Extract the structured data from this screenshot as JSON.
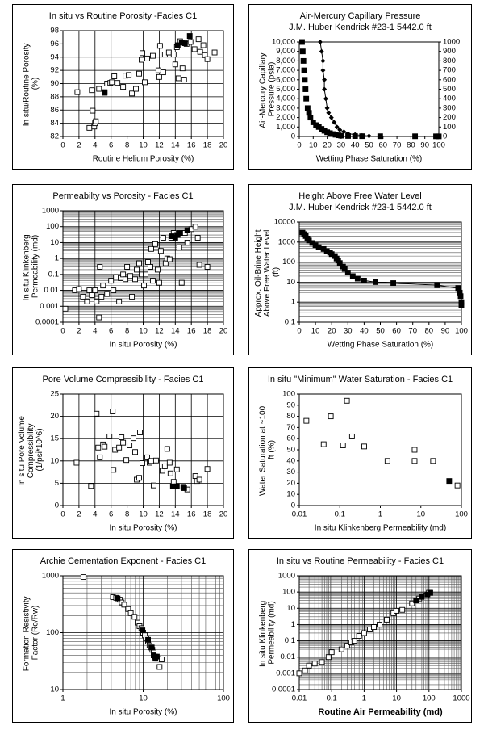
{
  "chart_data": [
    {
      "type": "scatter",
      "title": "In situ vs Routine Porosity -Facies C1",
      "xlabel": "Routine Helium Porosity (%)",
      "ylabel": "In situ/Routine Porosity (%)",
      "xlim": [
        0,
        20
      ],
      "xticks": [
        0,
        2,
        4,
        6,
        8,
        10,
        12,
        14,
        16,
        18,
        20
      ],
      "ylim": [
        82,
        98
      ],
      "yticks": [
        82,
        84,
        86,
        88,
        90,
        92,
        94,
        96,
        98
      ],
      "grid": true,
      "series": [
        {
          "marker": "square-open",
          "color": "#000000",
          "x": [
            1.8,
            3.3,
            3.6,
            3.7,
            3.9,
            4,
            4.1,
            4.5,
            5.2,
            5.5,
            5.9,
            6.1,
            6.4,
            6.8,
            7.5,
            7.8,
            8.2,
            8.6,
            9.1,
            9.5,
            9.8,
            9.9,
            10.2,
            10.5,
            11.2,
            11.9,
            12,
            12.1,
            12.5,
            12.7,
            13.2,
            13.8,
            14,
            14.2,
            14.4,
            14.6,
            14.9,
            15.1,
            15.4,
            15.9,
            16.4,
            16.9,
            17.1,
            17.5,
            17.7,
            18,
            18.9
          ],
          "values": [
            88.7,
            83.3,
            89,
            85.9,
            83.5,
            84,
            84.3,
            89.2,
            88.6,
            90,
            90.1,
            90.2,
            91.1,
            90.1,
            89.5,
            91.2,
            91.3,
            88.5,
            89.2,
            91.5,
            93.6,
            94.6,
            90.2,
            93.8,
            94.2,
            92,
            91,
            95.7,
            91.7,
            94.4,
            94.7,
            94.4,
            92.9,
            95.5,
            90.8,
            96.4,
            92.3,
            90.6,
            96,
            96.3,
            95.2,
            96.7,
            94.8,
            95.8,
            94.3,
            93.7,
            94.7
          ]
        },
        {
          "marker": "square-filled",
          "color": "#000000",
          "x": [
            5.2,
            14.3,
            14.8,
            15.2,
            15.8
          ],
          "values": [
            88.7,
            95.8,
            96.2,
            96.1,
            97.2
          ]
        }
      ]
    },
    {
      "type": "scatter",
      "title": "Air-Mercury Capillary Pressure",
      "subtitle": "J.M. Huber Kendrick #23-1 5442.0 ft",
      "xlabel": "Wetting Phase Saturation (%)",
      "ylabel": "Air-Mercury Capillary Pressure (psia)",
      "xlim": [
        0,
        100
      ],
      "xticks": [
        0,
        10,
        20,
        30,
        40,
        50,
        60,
        70,
        80,
        90,
        100
      ],
      "ylim": [
        0,
        10000
      ],
      "yticks": [
        0,
        {
          "value": 1000,
          "label": "1,000"
        },
        {
          "value": 2000,
          "label": "2,000"
        },
        {
          "value": 3000,
          "label": "3,000"
        },
        {
          "value": 4000,
          "label": "4,000"
        },
        {
          "value": 5000,
          "label": "5,000"
        },
        {
          "value": 6000,
          "label": "6,000"
        },
        {
          "value": 7000,
          "label": "7,000"
        },
        {
          "value": 8000,
          "label": "8,000"
        },
        {
          "value": 9000,
          "label": "9,000"
        },
        {
          "value": 10000,
          "label": "10,000"
        }
      ],
      "y2lim": [
        0,
        1000
      ],
      "y2ticks": [
        0,
        100,
        200,
        300,
        400,
        500,
        600,
        700,
        800,
        900,
        1000
      ],
      "grid": false,
      "series": [
        {
          "marker": "square-filled",
          "color": "#000000",
          "x": [
            2,
            2.5,
            3,
            3.5,
            4,
            4.5,
            5,
            6,
            7,
            8,
            10,
            12,
            14,
            16,
            18,
            20,
            22,
            24,
            26,
            28,
            30,
            35,
            40,
            45,
            58,
            83,
            98,
            100
          ],
          "values": [
            10000,
            9000,
            8000,
            7000,
            6000,
            5000,
            4000,
            3000,
            2500,
            2000,
            1500,
            1200,
            1000,
            800,
            600,
            450,
            350,
            250,
            180,
            120,
            80,
            50,
            40,
            30,
            25,
            20,
            15,
            10
          ]
        },
        {
          "marker": "diamond",
          "line": true,
          "axis": "y2",
          "color": "#000000",
          "x": [
            15,
            16,
            17,
            17,
            18,
            18,
            19,
            20,
            21,
            23,
            25,
            27,
            29,
            32,
            35,
            40,
            45,
            50
          ],
          "values": [
            1000,
            900,
            800,
            700,
            600,
            500,
            400,
            300,
            250,
            200,
            150,
            100,
            70,
            50,
            30,
            20,
            10,
            5
          ]
        }
      ]
    },
    {
      "type": "scatter",
      "title": "Permeabilty vs Porosity - Facies C1",
      "xlabel": "In situ Porosity (%)",
      "ylabel": "In situ Klinkenberg Permeability (md)",
      "xlim": [
        0,
        20
      ],
      "xticks": [
        0,
        2,
        4,
        6,
        8,
        10,
        12,
        14,
        16,
        18,
        20
      ],
      "ylim": [
        0.0001,
        1000
      ],
      "ylog": true,
      "yticks": [
        0.0001,
        0.001,
        0.01,
        0.1,
        1,
        10,
        100,
        1000
      ],
      "grid": true,
      "minor_grid": true,
      "series": [
        {
          "marker": "square-open",
          "color": "#000000",
          "x": [
            0.3,
            1.5,
            2,
            2.5,
            3,
            3.3,
            3.6,
            4,
            4.2,
            4.5,
            4.6,
            4.8,
            5,
            5.5,
            6,
            6.3,
            6.6,
            7,
            7.2,
            7.5,
            7.8,
            8,
            8.4,
            8.6,
            9,
            9.2,
            9.5,
            9.8,
            10.1,
            10.3,
            10.6,
            10.9,
            11,
            11.2,
            11.5,
            11.8,
            12,
            12.2,
            12.5,
            12.8,
            13,
            13.3,
            13.5,
            13.8,
            14.2,
            14.5,
            14.8,
            15.2,
            15.5,
            16,
            16.5,
            16.8,
            17,
            18
          ],
          "values": [
            0.0007,
            0.01,
            0.012,
            0.004,
            0.002,
            0.01,
            0.005,
            0.01,
            0.002,
            0.0002,
            0.3,
            0.004,
            0.02,
            0.006,
            0.04,
            0.01,
            0.07,
            0.002,
            0.06,
            0.1,
            0.05,
            0.3,
            0.08,
            0.004,
            0.05,
            0.2,
            0.5,
            0.1,
            0.02,
            0.1,
            0.6,
            0.3,
            4,
            0.04,
            8,
            0.2,
            0.03,
            3,
            20,
            0.5,
            1,
            0.9,
            20,
            40,
            30,
            5,
            0.03,
            40,
            10,
            70,
            100,
            20,
            0.4,
            0.3
          ]
        },
        {
          "marker": "square-filled",
          "color": "#000000",
          "x": [
            13.6,
            14,
            14.3,
            14.6,
            15.5
          ],
          "values": [
            25,
            20,
            30,
            40,
            60
          ]
        }
      ]
    },
    {
      "type": "scatter",
      "title": "Height Above Free Water Level",
      "subtitle": "J.M. Huber Kendrick #23-1 5442.0 ft",
      "xlabel": "Wetting Phase Saturation (%)",
      "ylabel": "Approx. Oil-Brine Height Above Free Water Level (ft)",
      "xlim": [
        0,
        100
      ],
      "xticks": [
        0,
        10,
        20,
        30,
        40,
        50,
        60,
        70,
        80,
        90,
        100
      ],
      "ylim": [
        0.1,
        10000
      ],
      "ylog": true,
      "yticks": [
        0.1,
        1,
        10,
        100,
        1000,
        10000
      ],
      "grid": "y",
      "minor_grid": true,
      "series": [
        {
          "marker": "square-filled",
          "line": true,
          "color": "#000000",
          "x": [
            2,
            3,
            4,
            5,
            6,
            8,
            10,
            12,
            15,
            17,
            19,
            20,
            22,
            23,
            24,
            25,
            27,
            28,
            30,
            33,
            36,
            40,
            47,
            58,
            85,
            98,
            99,
            99.5,
            100,
            100
          ],
          "values": [
            3000,
            2500,
            2000,
            1500,
            1200,
            900,
            700,
            550,
            450,
            350,
            300,
            250,
            200,
            150,
            120,
            90,
            60,
            45,
            30,
            20,
            15,
            12,
            10,
            9,
            7,
            5,
            3,
            2,
            1,
            0.7
          ]
        }
      ]
    },
    {
      "type": "scatter",
      "title": "Pore Volume Compressibility - Facies C1",
      "xlabel": "In situ Porosity (%)",
      "ylabel": "In situ Pore Volume Compressibility (1/psi*10^6)",
      "xlim": [
        0,
        20
      ],
      "xticks": [
        0,
        2,
        4,
        6,
        8,
        10,
        12,
        14,
        16,
        18,
        20
      ],
      "ylim": [
        0,
        25
      ],
      "yticks": [
        0,
        5,
        10,
        15,
        20,
        25
      ],
      "grid": true,
      "series": [
        {
          "marker": "square-open",
          "color": "#000000",
          "x": [
            1.7,
            3.5,
            4.2,
            4.4,
            4.6,
            5,
            5.2,
            5.8,
            6.2,
            6.3,
            6.5,
            7,
            7.3,
            7.5,
            7.9,
            8.3,
            8.8,
            9,
            9.2,
            9.5,
            9.6,
            9.9,
            10.5,
            10.8,
            11,
            11.3,
            11.6,
            12.4,
            12.7,
            13,
            13.3,
            13.4,
            13.8,
            14.2,
            15,
            15.5,
            16.5,
            16.7,
            17,
            18
          ],
          "values": [
            9.6,
            4.4,
            20.6,
            13,
            10.8,
            13.7,
            13.2,
            15.5,
            21.1,
            8,
            12.5,
            13,
            15.3,
            14.1,
            10.2,
            13.5,
            15.1,
            12,
            5.8,
            6.2,
            16.4,
            9.5,
            10.8,
            9.6,
            10,
            4.5,
            10.1,
            7.8,
            8.8,
            12.7,
            9.6,
            7.2,
            5.3,
            8.1,
            4.2,
            3.6,
            6.6,
            5.5,
            5.8,
            8.2
          ]
        },
        {
          "marker": "square-filled",
          "color": "#000000",
          "x": [
            13.7,
            14.2,
            15.1
          ],
          "values": [
            4.3,
            4.3,
            3.9
          ]
        }
      ]
    },
    {
      "type": "scatter",
      "title": "In situ \"Minimum\" Water Saturation - Facies C1",
      "xlabel": "In situ Klinkenberg Permeability (md)",
      "ylabel": "Water Saturation at ~100 ft (%)",
      "xlim": [
        0.01,
        100
      ],
      "xlog": true,
      "xticks": [
        0.01,
        0.1,
        1,
        10,
        100
      ],
      "ylim": [
        0,
        100
      ],
      "yticks": [
        0,
        10,
        20,
        30,
        40,
        50,
        60,
        70,
        80,
        90,
        100
      ],
      "grid": false,
      "series": [
        {
          "marker": "square-open",
          "color": "#000000",
          "x": [
            0.015,
            0.04,
            0.06,
            0.12,
            0.15,
            0.2,
            0.4,
            1.5,
            7,
            7,
            20,
            80
          ],
          "values": [
            76,
            55,
            80,
            54,
            94,
            62,
            53,
            40,
            50,
            40,
            40,
            18
          ]
        },
        {
          "marker": "square-filled",
          "color": "#000000",
          "x": [
            50
          ],
          "values": [
            22
          ]
        }
      ]
    },
    {
      "type": "scatter",
      "title": "Archie Cementation Exponent - Facies C1",
      "xlabel": "In situ Porosity (%)",
      "ylabel": "Formation Resistivity Factor (Ro/Rw)",
      "xlim": [
        1,
        100
      ],
      "xlog": true,
      "xticks": [
        1,
        10,
        100
      ],
      "ylim": [
        10,
        1000
      ],
      "ylog": true,
      "yticks": [
        10,
        100,
        1000
      ],
      "grid": true,
      "minor_grid": true,
      "series": [
        {
          "marker": "square-open",
          "color": "#000000",
          "x": [
            1.8,
            4.2,
            4.6,
            5.1,
            5.4,
            5.8,
            6.5,
            7,
            7.8,
            8.5,
            9,
            9.5,
            10,
            10.5,
            11,
            11.5,
            12,
            12.5,
            13,
            13.5,
            14,
            15,
            16,
            17
          ],
          "values": [
            950,
            420,
            410,
            380,
            340,
            310,
            260,
            220,
            190,
            150,
            130,
            120,
            100,
            90,
            80,
            70,
            60,
            55,
            50,
            45,
            38,
            35,
            25,
            34
          ]
        },
        {
          "marker": "square-filled",
          "color": "#000000",
          "x": [
            4.8,
            9.8,
            11.5,
            12.8,
            13.5,
            14.2,
            14.8
          ],
          "values": [
            400,
            110,
            75,
            55,
            40,
            35,
            38
          ]
        }
      ]
    },
    {
      "type": "scatter",
      "title": "In situ vs Routine Permeability - Facies C1",
      "xlabel": "Routine Air Permeability (md)",
      "xlabel_bold": true,
      "ylabel": "In situ Klinkenberg Permeability (md)",
      "xlim": [
        0.01,
        1000
      ],
      "xlog": true,
      "xticks": [
        0.01,
        0.1,
        1,
        10,
        100,
        1000
      ],
      "ylim": [
        0.0001,
        1000
      ],
      "ylog": true,
      "yticks": [
        0.0001,
        0.001,
        0.01,
        0.1,
        1,
        10,
        100,
        1000
      ],
      "grid": true,
      "minor_grid": true,
      "series": [
        {
          "marker": "square-open",
          "color": "#000000",
          "x": [
            0.01,
            0.015,
            0.02,
            0.03,
            0.05,
            0.08,
            0.1,
            0.2,
            0.3,
            0.4,
            0.5,
            0.7,
            1,
            1.5,
            2,
            3,
            5,
            8,
            10,
            15,
            30,
            50,
            80,
            100
          ],
          "values": [
            0.001,
            0.0015,
            0.003,
            0.004,
            0.005,
            0.01,
            0.02,
            0.03,
            0.05,
            0.08,
            0.1,
            0.2,
            0.3,
            0.5,
            0.7,
            1,
            2,
            5,
            7,
            8,
            20,
            40,
            60,
            90
          ]
        },
        {
          "marker": "square-filled",
          "color": "#000000",
          "x": [
            40,
            60,
            90,
            110
          ],
          "values": [
            30,
            50,
            70,
            90
          ]
        }
      ]
    }
  ]
}
